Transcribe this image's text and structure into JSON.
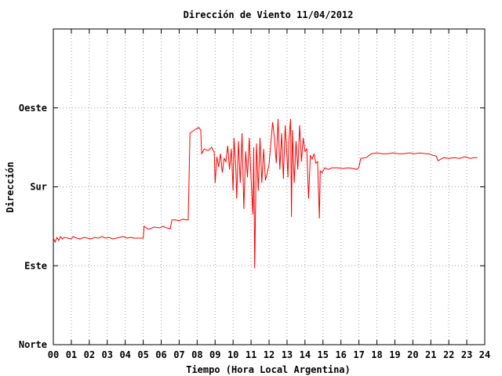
{
  "chart_data": {
    "type": "line",
    "title": "Dirección de Viento 11/04/2012",
    "xlabel": "Tiempo (Hora Local Argentina)",
    "ylabel": "Dirección",
    "xlim": [
      0,
      24
    ],
    "ylim": [
      0,
      4
    ],
    "grid": true,
    "x_ticks": [
      {
        "v": 0,
        "label": "00"
      },
      {
        "v": 1,
        "label": "01"
      },
      {
        "v": 2,
        "label": "02"
      },
      {
        "v": 3,
        "label": "03"
      },
      {
        "v": 4,
        "label": "04"
      },
      {
        "v": 5,
        "label": "05"
      },
      {
        "v": 6,
        "label": "06"
      },
      {
        "v": 7,
        "label": "07"
      },
      {
        "v": 8,
        "label": "08"
      },
      {
        "v": 9,
        "label": "09"
      },
      {
        "v": 10,
        "label": "10"
      },
      {
        "v": 11,
        "label": "11"
      },
      {
        "v": 12,
        "label": "12"
      },
      {
        "v": 13,
        "label": "13"
      },
      {
        "v": 14,
        "label": "14"
      },
      {
        "v": 15,
        "label": "15"
      },
      {
        "v": 16,
        "label": "16"
      },
      {
        "v": 17,
        "label": "17"
      },
      {
        "v": 18,
        "label": "18"
      },
      {
        "v": 19,
        "label": "19"
      },
      {
        "v": 20,
        "label": "20"
      },
      {
        "v": 21,
        "label": "21"
      },
      {
        "v": 22,
        "label": "22"
      },
      {
        "v": 23,
        "label": "23"
      },
      {
        "v": 24,
        "label": "24"
      }
    ],
    "y_ticks": [
      {
        "v": 0,
        "label": "Norte"
      },
      {
        "v": 1,
        "label": "Este"
      },
      {
        "v": 2,
        "label": "Sur"
      },
      {
        "v": 3,
        "label": "Oeste"
      }
    ],
    "series": [
      {
        "color": "#ff0000",
        "points": [
          [
            0.0,
            1.35
          ],
          [
            0.1,
            1.3
          ],
          [
            0.2,
            1.36
          ],
          [
            0.3,
            1.32
          ],
          [
            0.4,
            1.37
          ],
          [
            0.5,
            1.34
          ],
          [
            0.6,
            1.36
          ],
          [
            0.8,
            1.35
          ],
          [
            1.0,
            1.34
          ],
          [
            1.1,
            1.37
          ],
          [
            1.3,
            1.35
          ],
          [
            1.5,
            1.34
          ],
          [
            1.7,
            1.36
          ],
          [
            1.9,
            1.35
          ],
          [
            2.1,
            1.34
          ],
          [
            2.3,
            1.36
          ],
          [
            2.5,
            1.35
          ],
          [
            2.7,
            1.37
          ],
          [
            2.9,
            1.35
          ],
          [
            3.1,
            1.36
          ],
          [
            3.3,
            1.34
          ],
          [
            3.5,
            1.35
          ],
          [
            3.7,
            1.36
          ],
          [
            3.9,
            1.37
          ],
          [
            4.1,
            1.35
          ],
          [
            4.3,
            1.36
          ],
          [
            4.5,
            1.35
          ],
          [
            4.8,
            1.35
          ],
          [
            5.0,
            1.35
          ],
          [
            5.05,
            1.5
          ],
          [
            5.3,
            1.46
          ],
          [
            5.6,
            1.49
          ],
          [
            5.9,
            1.48
          ],
          [
            6.1,
            1.5
          ],
          [
            6.3,
            1.48
          ],
          [
            6.5,
            1.47
          ],
          [
            6.6,
            1.58
          ],
          [
            6.8,
            1.58
          ],
          [
            7.0,
            1.57
          ],
          [
            7.2,
            1.59
          ],
          [
            7.4,
            1.58
          ],
          [
            7.5,
            1.58
          ],
          [
            7.55,
            2.08
          ],
          [
            7.6,
            2.68
          ],
          [
            7.9,
            2.73
          ],
          [
            8.1,
            2.75
          ],
          [
            8.2,
            2.72
          ],
          [
            8.25,
            2.42
          ],
          [
            8.4,
            2.48
          ],
          [
            8.6,
            2.46
          ],
          [
            8.8,
            2.5
          ],
          [
            8.95,
            2.44
          ],
          [
            9.0,
            2.05
          ],
          [
            9.1,
            2.38
          ],
          [
            9.2,
            2.25
          ],
          [
            9.3,
            2.42
          ],
          [
            9.4,
            2.18
          ],
          [
            9.5,
            2.36
          ],
          [
            9.6,
            2.32
          ],
          [
            9.7,
            2.52
          ],
          [
            9.8,
            2.22
          ],
          [
            9.9,
            2.48
          ],
          [
            10.0,
            1.95
          ],
          [
            10.05,
            2.62
          ],
          [
            10.15,
            2.25
          ],
          [
            10.2,
            1.85
          ],
          [
            10.3,
            2.58
          ],
          [
            10.4,
            2.05
          ],
          [
            10.5,
            2.68
          ],
          [
            10.6,
            1.72
          ],
          [
            10.7,
            2.45
          ],
          [
            10.8,
            2.12
          ],
          [
            10.9,
            2.62
          ],
          [
            11.0,
            2.1
          ],
          [
            11.1,
            1.65
          ],
          [
            11.15,
            2.5
          ],
          [
            11.2,
            0.97
          ],
          [
            11.3,
            2.55
          ],
          [
            11.4,
            1.95
          ],
          [
            11.5,
            2.62
          ],
          [
            11.6,
            2.05
          ],
          [
            11.7,
            2.48
          ],
          [
            11.8,
            2.08
          ],
          [
            12.0,
            2.28
          ],
          [
            12.1,
            2.55
          ],
          [
            12.2,
            2.82
          ],
          [
            12.3,
            2.62
          ],
          [
            12.4,
            2.3
          ],
          [
            12.5,
            2.86
          ],
          [
            12.6,
            2.22
          ],
          [
            12.7,
            2.68
          ],
          [
            12.8,
            2.1
          ],
          [
            12.9,
            2.78
          ],
          [
            13.0,
            2.38
          ],
          [
            13.05,
            2.12
          ],
          [
            13.1,
            2.58
          ],
          [
            13.2,
            2.86
          ],
          [
            13.25,
            1.62
          ],
          [
            13.3,
            2.72
          ],
          [
            13.4,
            2.05
          ],
          [
            13.5,
            2.58
          ],
          [
            13.6,
            2.22
          ],
          [
            13.7,
            2.78
          ],
          [
            13.8,
            2.32
          ],
          [
            13.9,
            2.62
          ],
          [
            14.0,
            2.45
          ],
          [
            14.1,
            2.48
          ],
          [
            14.2,
            1.85
          ],
          [
            14.3,
            2.4
          ],
          [
            14.4,
            2.35
          ],
          [
            14.5,
            2.42
          ],
          [
            14.6,
            2.3
          ],
          [
            14.7,
            2.32
          ],
          [
            14.8,
            1.6
          ],
          [
            14.85,
            2.2
          ],
          [
            14.95,
            2.18
          ],
          [
            15.1,
            2.24
          ],
          [
            15.3,
            2.22
          ],
          [
            15.5,
            2.24
          ],
          [
            15.8,
            2.24
          ],
          [
            16.1,
            2.23
          ],
          [
            16.4,
            2.24
          ],
          [
            16.7,
            2.23
          ],
          [
            16.9,
            2.22
          ],
          [
            17.0,
            2.25
          ],
          [
            17.1,
            2.36
          ],
          [
            17.4,
            2.37
          ],
          [
            17.7,
            2.42
          ],
          [
            18.0,
            2.43
          ],
          [
            18.3,
            2.42
          ],
          [
            18.6,
            2.42
          ],
          [
            18.9,
            2.43
          ],
          [
            19.2,
            2.42
          ],
          [
            19.5,
            2.42
          ],
          [
            19.8,
            2.43
          ],
          [
            20.1,
            2.42
          ],
          [
            20.4,
            2.43
          ],
          [
            20.7,
            2.42
          ],
          [
            20.9,
            2.42
          ],
          [
            21.1,
            2.4
          ],
          [
            21.3,
            2.39
          ],
          [
            21.4,
            2.33
          ],
          [
            21.7,
            2.37
          ],
          [
            22.0,
            2.36
          ],
          [
            22.3,
            2.37
          ],
          [
            22.6,
            2.36
          ],
          [
            22.9,
            2.38
          ],
          [
            23.2,
            2.36
          ],
          [
            23.4,
            2.37
          ],
          [
            23.6,
            2.37
          ]
        ]
      }
    ]
  }
}
